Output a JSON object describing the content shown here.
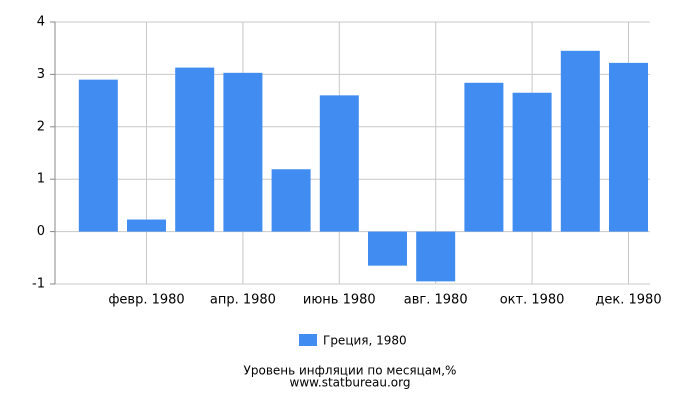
{
  "chart_data": {
    "type": "bar",
    "title": "Уровень инфляции по месяцам,%",
    "source": "www.statbureau.org",
    "categories": [
      null,
      "февр. 1980",
      null,
      "апр. 1980",
      null,
      "июнь 1980",
      null,
      "авг. 1980",
      null,
      "окт. 1980",
      null,
      "дек. 1980"
    ],
    "series": [
      {
        "name": "Греция, 1980",
        "color": "#418cf0",
        "values": [
          2.9,
          0.23,
          3.13,
          3.03,
          1.19,
          2.6,
          -0.65,
          -0.95,
          2.84,
          2.65,
          3.45,
          3.22
        ]
      }
    ],
    "ylim": [
      -1,
      4
    ],
    "yticks": [
      -1,
      0,
      1,
      2,
      3,
      4
    ],
    "grid": true,
    "legend": "bottom"
  }
}
